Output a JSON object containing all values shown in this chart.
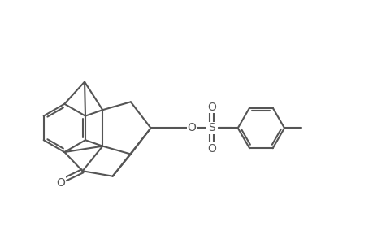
{
  "bg_color": "#ffffff",
  "line_color": "#555555",
  "line_width": 1.5,
  "figsize": [
    4.6,
    3.0
  ],
  "dpi": 100,
  "xlim": [
    0,
    9.2
  ],
  "ylim": [
    1.5,
    6.5
  ]
}
